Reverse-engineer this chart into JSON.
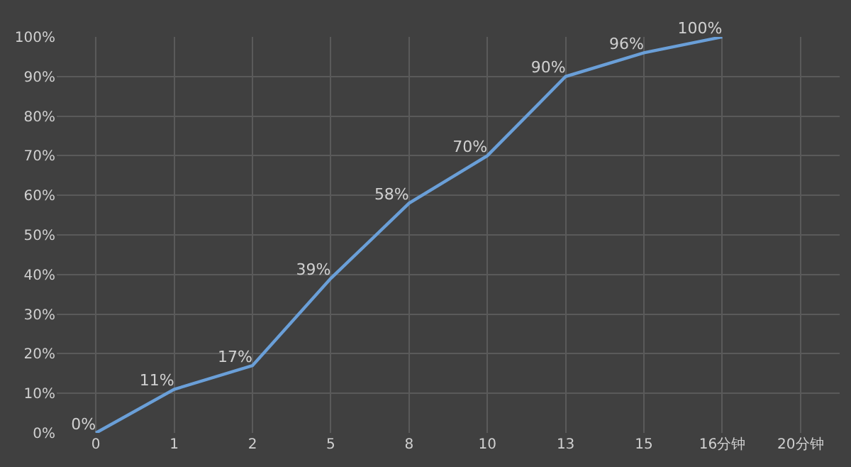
{
  "chart_data": {
    "type": "line",
    "categories": [
      "0",
      "1",
      "2",
      "5",
      "8",
      "10",
      "13",
      "15",
      "16分钟",
      "20分钟"
    ],
    "series": [
      {
        "color": "#6a9fd8",
        "values": [
          0,
          11,
          17,
          39,
          58,
          70,
          90,
          96,
          100,
          null
        ],
        "value_labels": [
          "0%",
          "11%",
          "17%",
          "39%",
          "58%",
          "70%",
          "90%",
          "96%",
          "100%",
          null
        ]
      }
    ],
    "ylim": [
      0,
      100
    ],
    "yticks": [
      {
        "value": 0,
        "label": "0%"
      },
      {
        "value": 10,
        "label": "10%"
      },
      {
        "value": 20,
        "label": "20%"
      },
      {
        "value": 30,
        "label": "30%"
      },
      {
        "value": 40,
        "label": "40%"
      },
      {
        "value": 50,
        "label": "50%"
      },
      {
        "value": 60,
        "label": "60%"
      },
      {
        "value": 70,
        "label": "70%"
      },
      {
        "value": 80,
        "label": "80%"
      },
      {
        "value": 90,
        "label": "90%"
      },
      {
        "value": 100,
        "label": "100%"
      }
    ],
    "grid": true,
    "legend": false,
    "marker": "none",
    "line_style": "solid"
  }
}
